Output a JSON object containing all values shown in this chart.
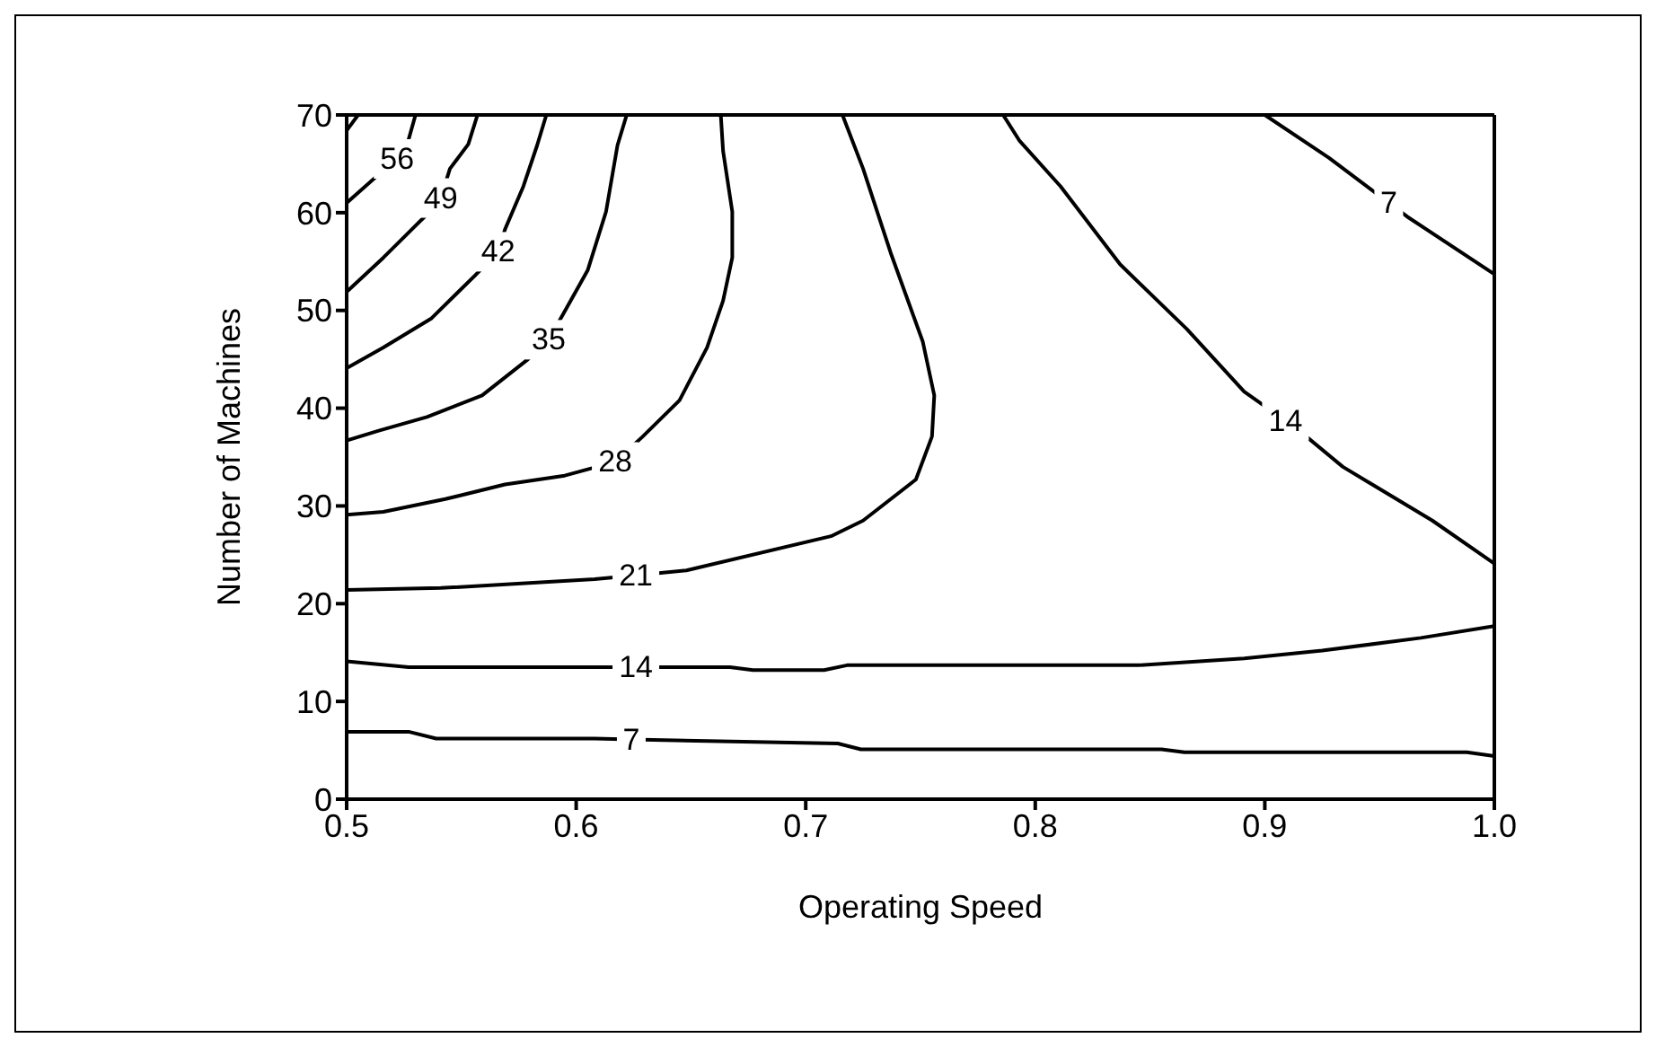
{
  "chart_data": {
    "type": "line",
    "xlabel": "Operating Speed",
    "ylabel": "Number of Machines",
    "xlim": [
      0.5,
      1.0
    ],
    "ylim": [
      0,
      70
    ],
    "xticks": [
      {
        "value": 0.5,
        "label": "0.5"
      },
      0.6,
      0.7,
      0.8,
      0.9,
      {
        "value": 1.0,
        "label": "1.0"
      }
    ],
    "yticks": [
      0,
      10,
      20,
      30,
      40,
      50,
      60,
      70
    ],
    "series": [
      {
        "color": "#000000",
        "x": [
          0.5,
          0.505
        ],
        "values": [
          68.4,
          70
        ]
      },
      {
        "color": "#000000",
        "x": [
          0.53,
          0.527,
          0.522,
          0.512,
          0.5
        ],
        "values": [
          70,
          67.5,
          65.5,
          63.5,
          61
        ]
      },
      {
        "color": "#000000",
        "x": [
          0.557,
          0.553,
          0.545,
          0.541,
          0.534,
          0.516,
          0.5
        ],
        "values": [
          70,
          67,
          64.5,
          61.5,
          59.6,
          55.4,
          51.9
        ]
      },
      {
        "color": "#000000",
        "x": [
          0.587,
          0.583,
          0.577,
          0.569,
          0.566,
          0.556,
          0.537,
          0.516,
          0.5
        ],
        "values": [
          70,
          66.9,
          62.7,
          58.3,
          56,
          53.6,
          49.2,
          46.2,
          44.1
        ]
      },
      {
        "color": "#000000",
        "x": [
          0.622,
          0.618,
          0.613,
          0.605,
          0.595,
          0.588,
          0.579,
          0.559,
          0.535,
          0.514,
          0.5
        ],
        "values": [
          70,
          66.9,
          60.1,
          54.1,
          49.9,
          47,
          45,
          41.3,
          39.1,
          37.7,
          36.7
        ]
      },
      {
        "color": "#000000",
        "x": [
          0.663,
          0.664,
          0.668,
          0.668,
          0.664,
          0.657,
          0.645,
          0.629,
          0.617,
          0.595,
          0.569,
          0.543,
          0.516,
          0.5
        ],
        "values": [
          70,
          66.3,
          60.1,
          55.4,
          51,
          46.2,
          40.8,
          37.1,
          34.5,
          33.1,
          32.2,
          30.7,
          29.4,
          29.1
        ]
      },
      {
        "color": "#000000",
        "x": [
          0.716,
          0.725,
          0.737,
          0.751,
          0.756,
          0.755,
          0.748,
          0.725,
          0.711,
          0.648,
          0.626,
          0.608,
          0.541,
          0.5
        ],
        "values": [
          70,
          64.5,
          55.9,
          46.8,
          41.3,
          37.1,
          32.7,
          28.5,
          26.9,
          23.4,
          22.9,
          22.5,
          21.6,
          21.4
        ]
      },
      {
        "color": "#000000",
        "x": [
          0.786,
          0.793,
          0.811,
          0.837,
          0.866,
          0.891,
          0.909,
          0.915,
          0.934,
          0.973,
          1.0
        ],
        "values": [
          70,
          67.4,
          62.7,
          54.7,
          48.1,
          41.7,
          38.7,
          37.7,
          34,
          28.5,
          24.1
        ]
      },
      {
        "color": "#000000",
        "x": [
          0.9,
          0.928,
          0.954,
          0.962,
          1.0
        ],
        "values": [
          70,
          65.6,
          61,
          59.6,
          53.7
        ]
      },
      {
        "color": "#000000",
        "x": [
          0.5,
          0.527,
          0.667,
          0.677,
          0.708,
          0.718,
          0.845,
          0.891,
          0.925,
          0.968,
          1.0
        ],
        "values": [
          14.1,
          13.5,
          13.5,
          13.2,
          13.2,
          13.7,
          13.7,
          14.4,
          15.2,
          16.5,
          17.7
        ]
      },
      {
        "color": "#000000",
        "x": [
          0.5,
          0.527,
          0.539,
          0.608,
          0.624,
          0.714,
          0.724,
          0.855,
          0.865,
          0.988,
          1.0
        ],
        "values": [
          6.9,
          6.9,
          6.2,
          6.2,
          6.1,
          5.7,
          5.1,
          5.1,
          4.8,
          4.8,
          4.4
        ]
      }
    ],
    "annotations": [
      {
        "text": "56",
        "x": 0.522,
        "y": 65.5
      },
      {
        "text": "49",
        "x": 0.541,
        "y": 61.5
      },
      {
        "text": "42",
        "x": 0.566,
        "y": 56
      },
      {
        "text": "35",
        "x": 0.588,
        "y": 47
      },
      {
        "text": "28",
        "x": 0.617,
        "y": 34.5
      },
      {
        "text": "21",
        "x": 0.626,
        "y": 22.9
      },
      {
        "text": "14",
        "x": 0.626,
        "y": 13.5
      },
      {
        "text": "7",
        "x": 0.624,
        "y": 6.1
      },
      {
        "text": "14",
        "x": 0.909,
        "y": 38.7
      },
      {
        "text": "7",
        "x": 0.954,
        "y": 61
      }
    ]
  }
}
